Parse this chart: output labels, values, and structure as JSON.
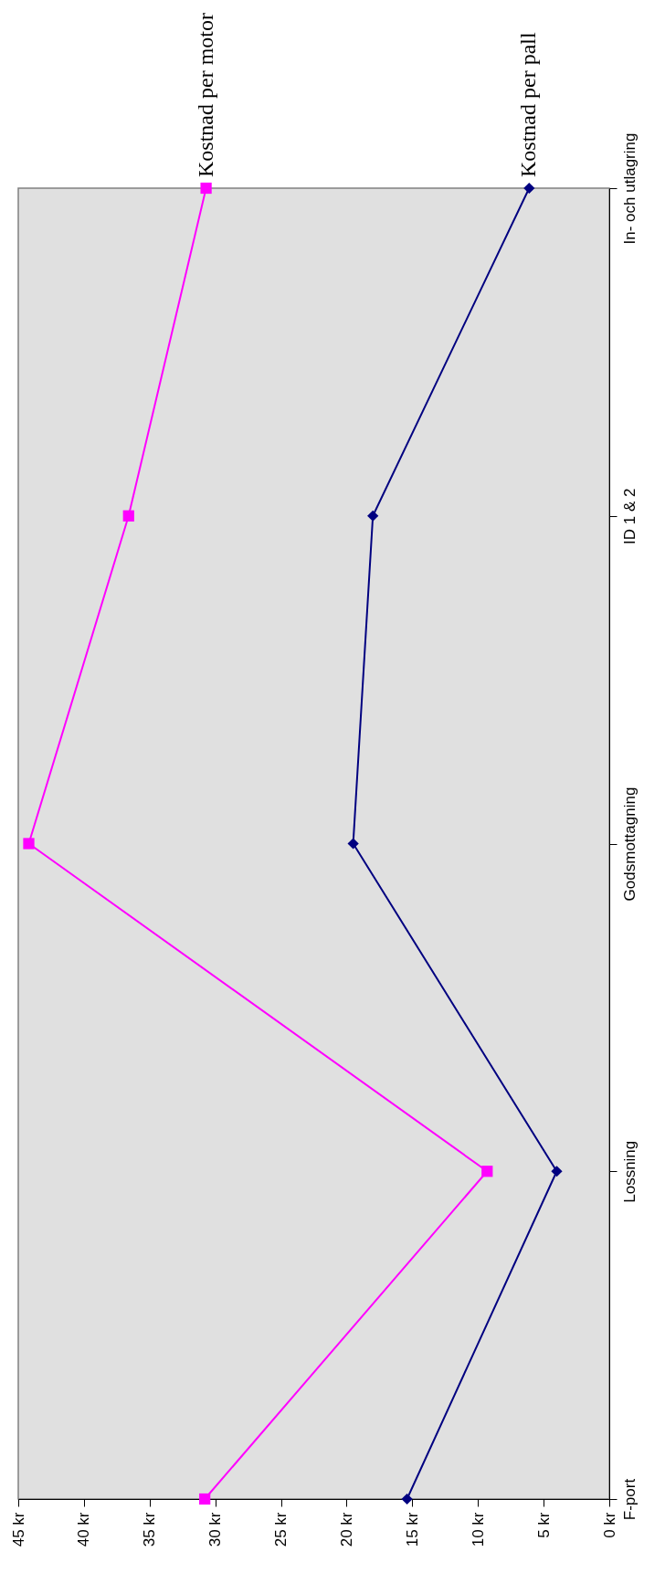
{
  "chart_data": {
    "type": "line",
    "orientation": "horizontal",
    "categories": [
      "In- och utlagring",
      "ID 1 & 2",
      "Godsmottagning",
      "Lossning",
      "F-port"
    ],
    "series": [
      {
        "name": "Kostnad per motor",
        "color": "#ff00ff",
        "marker": "square",
        "values": [
          30.7,
          36.6,
          44.2,
          9.3,
          30.8
        ]
      },
      {
        "name": "Kostnad per pall",
        "color": "#000080",
        "marker": "diamond",
        "values": [
          6.1,
          18.0,
          19.5,
          4.0,
          15.4
        ]
      }
    ],
    "xlim": [
      45,
      0
    ],
    "xticks": [
      {
        "value": 45,
        "label": "45 kr"
      },
      {
        "value": 40,
        "label": "40 kr"
      },
      {
        "value": 35,
        "label": "35 kr"
      },
      {
        "value": 30,
        "label": "30 kr"
      },
      {
        "value": 25,
        "label": "25 kr"
      },
      {
        "value": 20,
        "label": "20 kr"
      },
      {
        "value": 15,
        "label": "15 kr"
      },
      {
        "value": 10,
        "label": "10 kr"
      },
      {
        "value": 5,
        "label": "5 kr"
      },
      {
        "value": 0,
        "label": "0 kr"
      }
    ],
    "grid": false,
    "legend": "top"
  }
}
